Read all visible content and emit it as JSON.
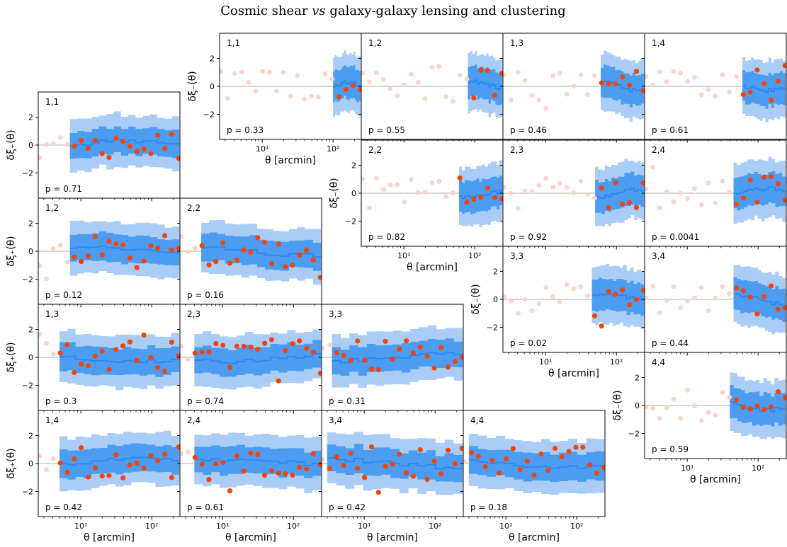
{
  "title": {
    "pre": "Cosmic shear ",
    "vs": "vs",
    "post": " galaxy-galaxy lensing and clustering"
  },
  "labels": {
    "xlabel": "θ [arcmin]",
    "ylabel_plus": "δξ₊(θ)",
    "ylabel_minus": "δξ₋(θ)",
    "x_tick_labels": [
      "10¹",
      "10²"
    ],
    "y_tick_labels": [
      "−2",
      "0",
      "2"
    ]
  },
  "colors": {
    "model_line": "#2b86f0",
    "band_inner": "#4c9cf2",
    "band_outer": "#a9cdf7",
    "data_used": "#f0440c",
    "data_masked": "#fad4cb",
    "zero_line": "#c8c8c8"
  },
  "chart_data": {
    "type": "scatter",
    "x_scale": "log",
    "xlim_arcmin": [
      2.5,
      250
    ],
    "ylim": [
      -3.8,
      3.8
    ],
    "panel_groups": [
      {
        "name": "xi_plus",
        "ylabel": "δξ₊(θ)",
        "panels": [
          {
            "bin": "1,1",
            "p": "p = 0.71",
            "x_min_used": 7
          },
          {
            "bin": "1,2",
            "p": "p = 0.12",
            "x_min_used": 7
          },
          {
            "bin": "2,2",
            "p": "p = 0.16",
            "x_min_used": 5
          },
          {
            "bin": "1,3",
            "p": "p = 0.3",
            "x_min_used": 5
          },
          {
            "bin": "2,3",
            "p": "p = 0.74",
            "x_min_used": 4
          },
          {
            "bin": "3,3",
            "p": "p = 0.31",
            "x_min_used": 3.5
          },
          {
            "bin": "1,4",
            "p": "p = 0.42",
            "x_min_used": 5
          },
          {
            "bin": "2,4",
            "p": "p = 0.61",
            "x_min_used": 4
          },
          {
            "bin": "3,4",
            "p": "p = 0.42",
            "x_min_used": 3
          },
          {
            "bin": "4,4",
            "p": "p = 0.18",
            "x_min_used": 3
          }
        ]
      },
      {
        "name": "xi_minus",
        "ylabel": "δξ₋(θ)",
        "panels": [
          {
            "bin": "1,1",
            "p": "p = 0.33",
            "x_min_used": 100
          },
          {
            "bin": "1,2",
            "p": "p = 0.55",
            "x_min_used": 80
          },
          {
            "bin": "1,3",
            "p": "p = 0.46",
            "x_min_used": 60
          },
          {
            "bin": "1,4",
            "p": "p = 0.61",
            "x_min_used": 60
          },
          {
            "bin": "2,2",
            "p": "p = 0.82",
            "x_min_used": 60
          },
          {
            "bin": "2,3",
            "p": "p = 0.92",
            "x_min_used": 50
          },
          {
            "bin": "2,4",
            "p": "p = 0.0041",
            "x_min_used": 45
          },
          {
            "bin": "3,3",
            "p": "p = 0.02",
            "x_min_used": 45
          },
          {
            "bin": "3,4",
            "p": "p = 0.44",
            "x_min_used": 45
          },
          {
            "bin": "4,4",
            "p": "p = 0.59",
            "x_min_used": 40
          }
        ]
      }
    ]
  }
}
